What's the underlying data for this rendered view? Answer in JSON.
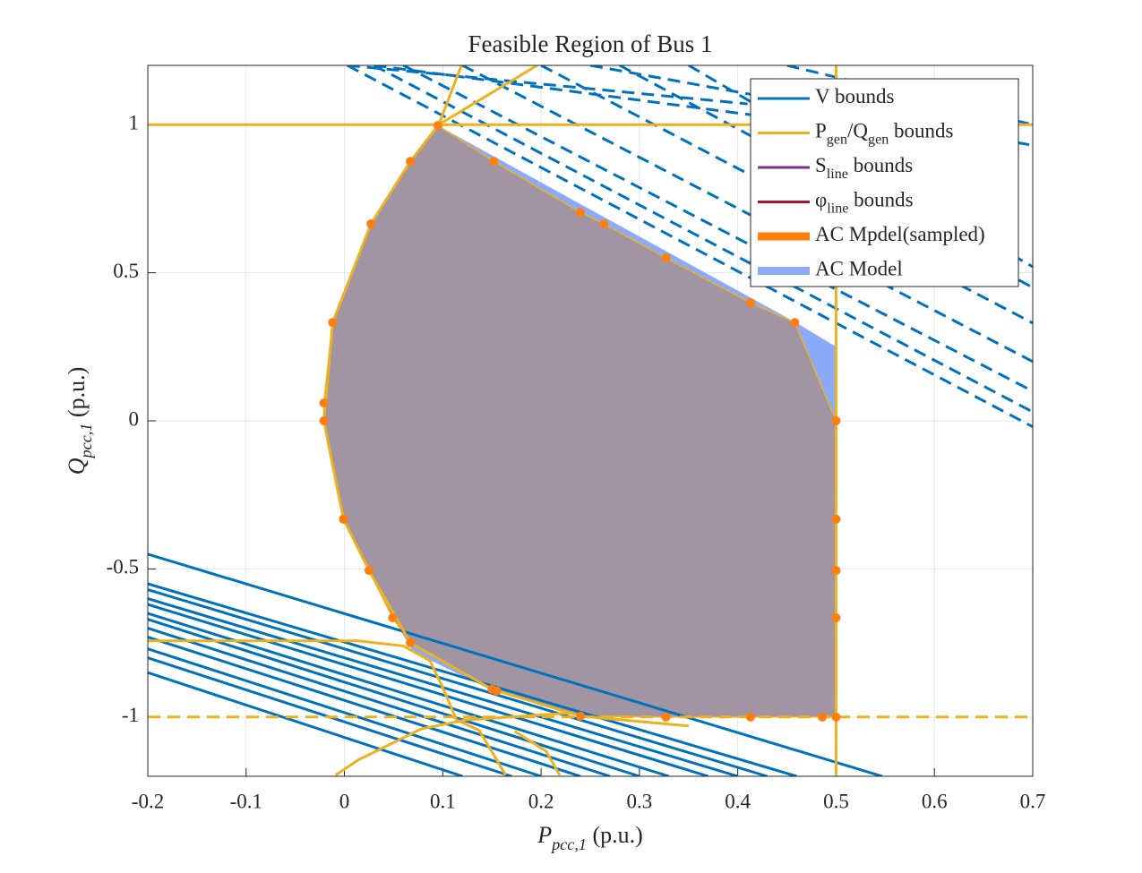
{
  "chart_data": {
    "type": "line",
    "title": "Feasible Region of Bus 1",
    "xlabel": [
      "P",
      "pcc,1",
      " (p.u.)"
    ],
    "ylabel": [
      "Q",
      "pcc,1",
      " (p.u.)"
    ],
    "xlim": [
      -0.2,
      0.7
    ],
    "ylim": [
      -1.2,
      1.2
    ],
    "xticks": [
      -0.2,
      -0.1,
      0,
      0.1,
      0.2,
      0.3,
      0.4,
      0.5,
      0.6,
      0.7
    ],
    "yticks": [
      -1,
      -0.5,
      0,
      0.5,
      1
    ],
    "grid": true,
    "legend": "upper right",
    "series": [
      {
        "name": [
          "V bounds"
        ],
        "color": "#0072bd",
        "x": [
          -0.2,
          0.547,
          null,
          -0.2,
          0.46,
          null,
          -0.2,
          0.43,
          null,
          -0.2,
          0.4,
          null,
          -0.2,
          0.37,
          null,
          -0.2,
          0.33,
          null,
          -0.2,
          0.3,
          null,
          -0.2,
          0.27,
          null,
          -0.2,
          0.24,
          null,
          -0.2,
          0.2,
          null,
          -0.2,
          0.17,
          null,
          -0.2,
          0.12
        ],
        "y": [
          -0.45,
          -1.2,
          null,
          -0.55,
          -1.2,
          null,
          -0.57,
          -1.2,
          null,
          -0.6,
          -1.2,
          null,
          -0.62,
          -1.2,
          null,
          -0.65,
          -1.2,
          null,
          -0.67,
          -1.2,
          null,
          -0.7,
          -1.2,
          null,
          -0.73,
          -1.2,
          null,
          -0.77,
          -1.2,
          null,
          -0.8,
          -1.2,
          null,
          -0.85,
          -1.2
        ]
      },
      {
        "color": "#0072bd",
        "dash": true,
        "x": [
          0.003,
          0.7,
          null,
          0.03,
          0.7,
          null,
          0.06,
          0.7,
          null,
          0.12,
          0.7,
          null,
          0.2,
          0.7,
          null,
          0.28,
          0.7,
          null,
          0.35,
          0.7,
          null,
          0.003,
          0.41,
          null,
          0.03,
          0.42,
          null,
          0.25,
          0.7,
          null,
          0.45,
          0.7
        ],
        "y": [
          1.2,
          -0.02,
          null,
          1.2,
          0.03,
          null,
          1.2,
          0.1,
          null,
          1.2,
          0.2,
          null,
          1.2,
          0.33,
          null,
          1.2,
          0.45,
          null,
          1.2,
          0.52,
          null,
          1.2,
          1.07,
          null,
          1.2,
          1.03,
          null,
          1.2,
          0.93,
          null,
          1.2,
          1.0
        ]
      },
      {
        "name": [
          "P",
          "gen",
          "/Q",
          "gen",
          " bounds"
        ],
        "color": "#edb120",
        "x": [
          -0.2,
          0.7,
          null,
          0.5,
          0.5,
          null,
          0.119,
          0.096,
          0.067,
          0.027,
          -0.012,
          -0.021,
          -0.001,
          0.025,
          0.067,
          0.15,
          0.24,
          0.35,
          null,
          0.096,
          0.196,
          null,
          -0.2,
          0.014,
          0.06,
          0.087,
          0.1,
          0.114,
          0.137,
          0.164,
          null,
          -0.009,
          0.014,
          0.078,
          0.123,
          0.196,
          0.233,
          null,
          0.173,
          0.205,
          0.219
        ],
        "y": [
          1,
          1,
          null,
          -1.2,
          1.2,
          null,
          1.2,
          1.0,
          0.876,
          0.665,
          0.332,
          0,
          -0.332,
          -0.505,
          -0.749,
          -0.906,
          -0.997,
          -1.03,
          null,
          1.0,
          1.2,
          null,
          -0.743,
          -0.743,
          -0.76,
          -0.81,
          -0.9,
          -1.01,
          -1.045,
          -1.196,
          null,
          -1.196,
          -1.145,
          -1.04,
          -1.01,
          -0.994,
          -0.985,
          null,
          -1.048,
          -1.115,
          -1.196
        ]
      },
      {
        "color": "#edb120",
        "dash": true,
        "x": [
          -0.2,
          0.7
        ],
        "y": [
          -1,
          -1
        ]
      },
      {
        "name": [
          "S",
          "line",
          " bounds"
        ],
        "color": "#7e2f8e",
        "x": [],
        "y": []
      },
      {
        "name": [
          "φ",
          "line",
          " bounds"
        ],
        "color": "#a2142f",
        "x": [],
        "y": []
      },
      {
        "name": [
          "AC Mpdel(sampled)"
        ],
        "color": "#ff7f0e",
        "fill": "#a194a3",
        "edge": "#edb120",
        "markers": true,
        "x": [
          0.095,
          0.152,
          0.24,
          0.264,
          0.327,
          0.413,
          0.458,
          0.5,
          0.5,
          0.5,
          0.5,
          0.5,
          0.486,
          0.413,
          0.327,
          0.24,
          0.155,
          0.15,
          0.067,
          0.049,
          0.025,
          -0.001,
          -0.021,
          -0.021,
          -0.012,
          0.027,
          0.067
        ],
        "y": [
          0.997,
          0.876,
          0.704,
          0.665,
          0.55,
          0.399,
          0.332,
          0,
          -0.332,
          -0.505,
          -0.665,
          -1,
          -1,
          -1,
          -1,
          -0.997,
          -0.912,
          -0.906,
          -0.749,
          -0.665,
          -0.505,
          -0.332,
          0,
          0.06,
          0.332,
          0.665,
          0.876
        ]
      },
      {
        "name": [
          "AC Model"
        ],
        "color": "#8caafa",
        "fill": "#8caafa",
        "x": [
          0.095,
          0.067,
          0.027,
          -0.012,
          -0.021,
          -0.001,
          0.025,
          0.049,
          0.07,
          0.15,
          0.24,
          0.5,
          0.5,
          0.46
        ],
        "y": [
          0.997,
          0.876,
          0.665,
          0.332,
          0,
          -0.332,
          -0.505,
          -0.665,
          -0.78,
          -0.91,
          -0.997,
          -1,
          0.25,
          0.33
        ]
      }
    ]
  }
}
